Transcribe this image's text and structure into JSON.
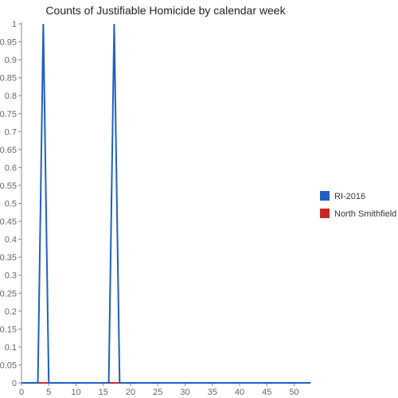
{
  "chart_data": {
    "type": "line",
    "title": "Counts of Justifiable Homicide by calendar week",
    "xlabel": "",
    "ylabel": "",
    "xlim": [
      0,
      53
    ],
    "ylim": [
      0,
      1
    ],
    "x_ticks": [
      0,
      5,
      10,
      15,
      20,
      25,
      30,
      35,
      40,
      45,
      50
    ],
    "y_ticks": [
      0,
      0.05,
      0.1,
      0.15,
      0.2,
      0.25,
      0.3,
      0.35,
      0.4,
      0.45,
      0.5,
      0.55,
      0.6,
      0.65,
      0.7,
      0.75,
      0.8,
      0.85,
      0.9,
      0.95,
      1
    ],
    "grid": false,
    "legend_position": "right",
    "series": [
      {
        "name": "RI-2016",
        "color": "#1f5fbf",
        "x": [
          0,
          3,
          4,
          5,
          16,
          17,
          18,
          53
        ],
        "values": [
          0,
          0,
          1,
          0,
          0,
          1,
          0,
          0
        ]
      },
      {
        "name": "North Smithfield",
        "color": "#c62828",
        "x": [
          0,
          53
        ],
        "values": [
          0,
          0
        ]
      }
    ]
  }
}
